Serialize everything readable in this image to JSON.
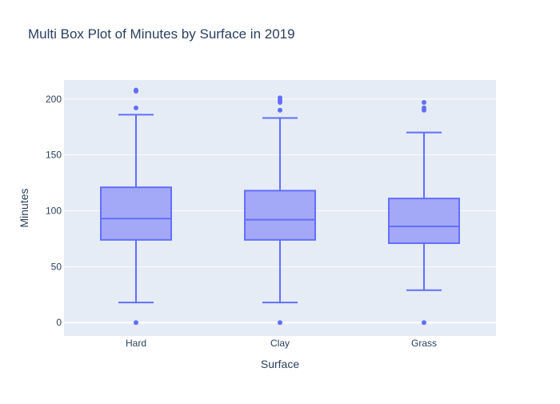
{
  "chart_data": {
    "type": "box",
    "title": "Multi Box Plot of Minutes by Surface in 2019",
    "xlabel": "Surface",
    "ylabel": "Minutes",
    "ylim": [
      -12,
      217
    ],
    "yticks": [
      0,
      50,
      100,
      150,
      200
    ],
    "grid": true,
    "colors": {
      "plot_bg": "#e5ecf6",
      "box_line": "#636efa",
      "box_fill": "#a3a8f7",
      "grid": "#ffffff",
      "text": "#2a3f5f"
    },
    "categories": [
      "Hard",
      "Clay",
      "Grass"
    ],
    "boxes": [
      {
        "category": "Hard",
        "lower_fence": 18,
        "q1": 74,
        "median": 93,
        "q3": 121,
        "upper_fence": 186,
        "outliers": [
          0,
          192,
          207,
          208
        ]
      },
      {
        "category": "Clay",
        "lower_fence": 18,
        "q1": 74,
        "median": 92,
        "q3": 118,
        "upper_fence": 183,
        "outliers": [
          0,
          190,
          197,
          199,
          201
        ]
      },
      {
        "category": "Grass",
        "lower_fence": 29,
        "q1": 71,
        "median": 86,
        "q3": 111,
        "upper_fence": 170,
        "outliers": [
          0,
          190,
          192,
          197
        ]
      }
    ]
  }
}
